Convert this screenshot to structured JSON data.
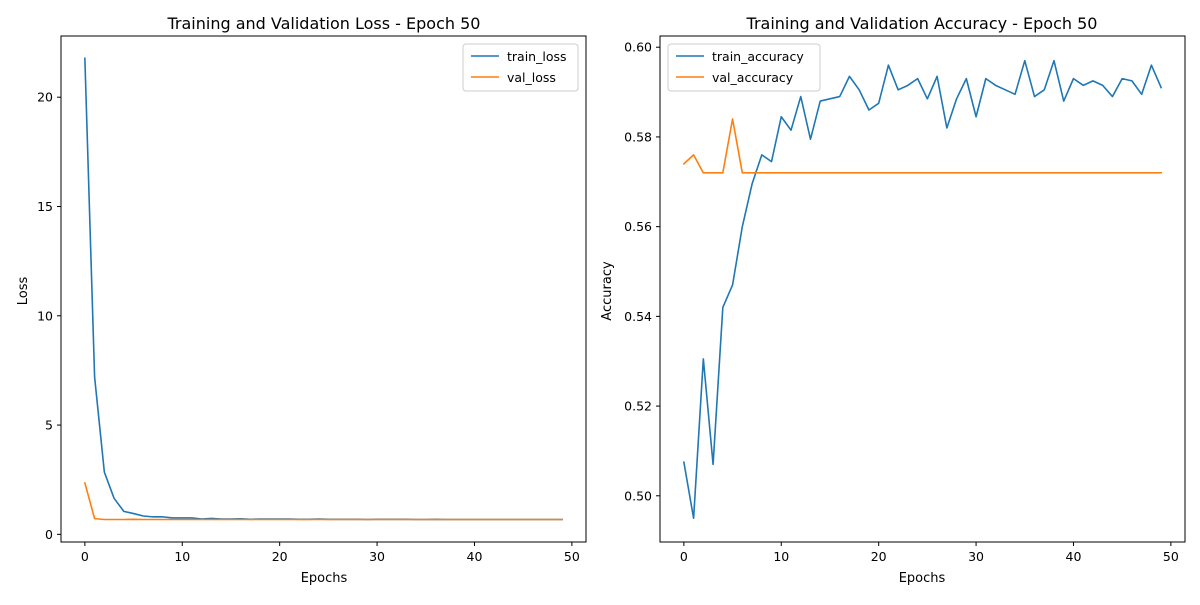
{
  "colors": {
    "train": "#1f77b4",
    "val": "#ff7f0e",
    "axis": "#000000",
    "legend_border": "#cccccc"
  },
  "chart_data": [
    {
      "type": "line",
      "title": "Training and Validation Loss - Epoch 50",
      "xlabel": "Epochs",
      "ylabel": "Loss",
      "xlim": [
        -2.45,
        51.45
      ],
      "ylim": [
        -0.35,
        22.8
      ],
      "xticks": [
        0,
        10,
        20,
        30,
        40,
        50
      ],
      "yticks": [
        0,
        5,
        10,
        15,
        20
      ],
      "ytick_labels": [
        "0",
        "5",
        "10",
        "15",
        "20"
      ],
      "grid": false,
      "legend_position": "top-right",
      "series": [
        {
          "name": "train_loss",
          "color_key": "train",
          "x": [
            0,
            1,
            2,
            3,
            4,
            5,
            6,
            7,
            8,
            9,
            10,
            11,
            12,
            13,
            14,
            15,
            16,
            17,
            18,
            19,
            20,
            21,
            22,
            23,
            24,
            25,
            26,
            27,
            28,
            29,
            30,
            31,
            32,
            33,
            34,
            35,
            36,
            37,
            38,
            39,
            40,
            41,
            42,
            43,
            44,
            45,
            46,
            47,
            48,
            49
          ],
          "values": [
            21.78,
            7.2,
            2.85,
            1.65,
            1.05,
            0.95,
            0.84,
            0.8,
            0.8,
            0.75,
            0.75,
            0.75,
            0.7,
            0.73,
            0.7,
            0.7,
            0.71,
            0.69,
            0.7,
            0.7,
            0.7,
            0.7,
            0.69,
            0.69,
            0.7,
            0.69,
            0.69,
            0.69,
            0.69,
            0.68,
            0.69,
            0.69,
            0.69,
            0.69,
            0.68,
            0.68,
            0.69,
            0.68,
            0.68,
            0.68,
            0.68,
            0.68,
            0.68,
            0.68,
            0.68,
            0.68,
            0.68,
            0.68,
            0.68,
            0.68
          ]
        },
        {
          "name": "val_loss",
          "color_key": "val",
          "x": [
            0,
            1,
            2,
            3,
            4,
            5,
            6,
            7,
            8,
            9,
            10,
            11,
            12,
            13,
            14,
            15,
            16,
            17,
            18,
            19,
            20,
            21,
            22,
            23,
            24,
            25,
            26,
            27,
            28,
            29,
            30,
            31,
            32,
            33,
            34,
            35,
            36,
            37,
            38,
            39,
            40,
            41,
            42,
            43,
            44,
            45,
            46,
            47,
            48,
            49
          ],
          "values": [
            2.35,
            0.72,
            0.68,
            0.68,
            0.68,
            0.69,
            0.68,
            0.68,
            0.68,
            0.68,
            0.68,
            0.68,
            0.68,
            0.68,
            0.68,
            0.68,
            0.68,
            0.68,
            0.68,
            0.68,
            0.68,
            0.68,
            0.68,
            0.68,
            0.68,
            0.68,
            0.68,
            0.68,
            0.68,
            0.68,
            0.68,
            0.68,
            0.68,
            0.68,
            0.68,
            0.68,
            0.68,
            0.68,
            0.68,
            0.68,
            0.68,
            0.68,
            0.68,
            0.68,
            0.68,
            0.68,
            0.68,
            0.68,
            0.68,
            0.68
          ]
        }
      ]
    },
    {
      "type": "line",
      "title": "Training and Validation Accuracy - Epoch 50",
      "xlabel": "Epochs",
      "ylabel": "Accuracy",
      "xlim": [
        -2.45,
        51.45
      ],
      "ylim": [
        0.4897,
        0.6025
      ],
      "xticks": [
        0,
        10,
        20,
        30,
        40,
        50
      ],
      "yticks": [
        0.5,
        0.52,
        0.54,
        0.56,
        0.58,
        0.6
      ],
      "ytick_labels": [
        "0.50",
        "0.52",
        "0.54",
        "0.56",
        "0.58",
        "0.60"
      ],
      "grid": false,
      "legend_position": "top-left",
      "series": [
        {
          "name": "train_accuracy",
          "color_key": "train",
          "x": [
            0,
            1,
            2,
            3,
            4,
            5,
            6,
            7,
            8,
            9,
            10,
            11,
            12,
            13,
            14,
            15,
            16,
            17,
            18,
            19,
            20,
            21,
            22,
            23,
            24,
            25,
            26,
            27,
            28,
            29,
            30,
            31,
            32,
            33,
            34,
            35,
            36,
            37,
            38,
            39,
            40,
            41,
            42,
            43,
            44,
            45,
            46,
            47,
            48,
            49
          ],
          "values": [
            0.5075,
            0.495,
            0.5305,
            0.507,
            0.542,
            0.547,
            0.56,
            0.5695,
            0.576,
            0.5745,
            0.5845,
            0.5815,
            0.589,
            0.5795,
            0.588,
            0.5885,
            0.589,
            0.5935,
            0.5905,
            0.586,
            0.5875,
            0.596,
            0.5905,
            0.5915,
            0.593,
            0.5885,
            0.5935,
            0.582,
            0.5885,
            0.593,
            0.5845,
            0.593,
            0.5915,
            0.5905,
            0.5895,
            0.597,
            0.589,
            0.5905,
            0.597,
            0.588,
            0.593,
            0.5915,
            0.5925,
            0.5915,
            0.589,
            0.593,
            0.5925,
            0.5895,
            0.596,
            0.591
          ]
        },
        {
          "name": "val_accuracy",
          "color_key": "val",
          "x": [
            0,
            1,
            2,
            3,
            4,
            5,
            6,
            7,
            8,
            9,
            10,
            11,
            12,
            13,
            14,
            15,
            16,
            17,
            18,
            19,
            20,
            21,
            22,
            23,
            24,
            25,
            26,
            27,
            28,
            29,
            30,
            31,
            32,
            33,
            34,
            35,
            36,
            37,
            38,
            39,
            40,
            41,
            42,
            43,
            44,
            45,
            46,
            47,
            48,
            49
          ],
          "values": [
            0.574,
            0.576,
            0.572,
            0.572,
            0.572,
            0.584,
            0.572,
            0.572,
            0.572,
            0.572,
            0.572,
            0.572,
            0.572,
            0.572,
            0.572,
            0.572,
            0.572,
            0.572,
            0.572,
            0.572,
            0.572,
            0.572,
            0.572,
            0.572,
            0.572,
            0.572,
            0.572,
            0.572,
            0.572,
            0.572,
            0.572,
            0.572,
            0.572,
            0.572,
            0.572,
            0.572,
            0.572,
            0.572,
            0.572,
            0.572,
            0.572,
            0.572,
            0.572,
            0.572,
            0.572,
            0.572,
            0.572,
            0.572,
            0.572,
            0.572
          ]
        }
      ]
    }
  ]
}
